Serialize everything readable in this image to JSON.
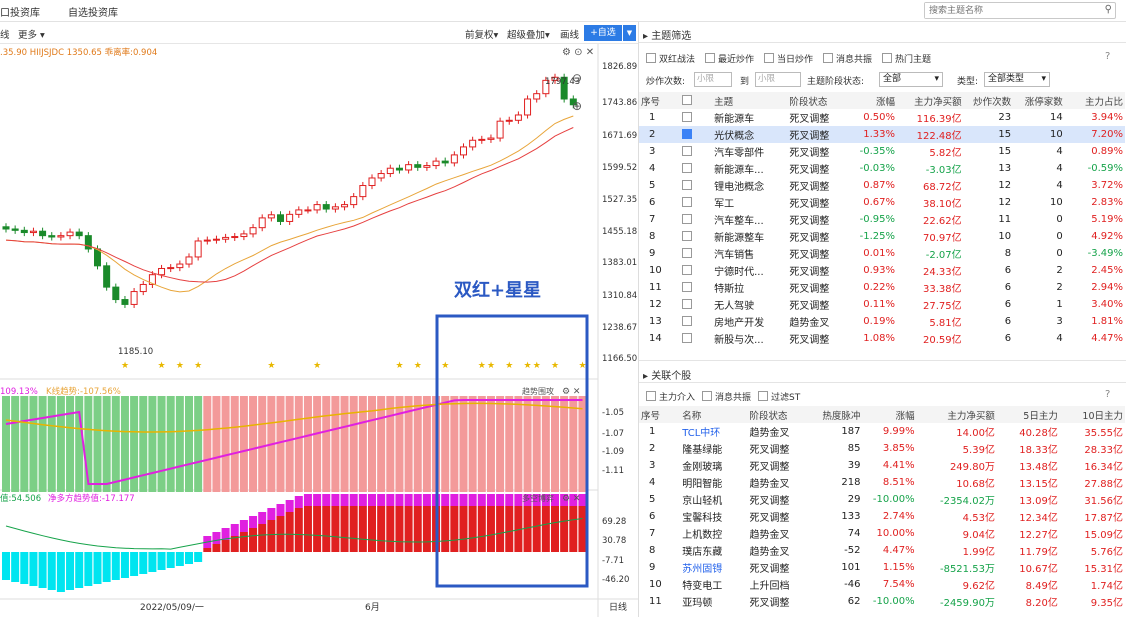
{
  "topbar": {
    "tab1": "口投资库",
    "tab2": "自选投资库",
    "search_placeholder": "搜索主题名称"
  },
  "toolbar": {
    "line": "线",
    "more": "更多",
    "adjust": "前复权",
    "overlay": "超级叠加",
    "draw": "画线",
    "add": "+自选"
  },
  "chart": {
    "info_line": ".35.90  HIIJSJDC 1350.65  乖离率:0.904",
    "high_label": "1797.43",
    "low_label": "1185.10",
    "price_axis": [
      "1826.89",
      "1743.86",
      "1671.69",
      "1599.52",
      "1527.35",
      "1455.18",
      "1383.01",
      "1310.84",
      "1238.67",
      "1166.50"
    ],
    "annotation": "双红+星星",
    "ind1_label_a": "109.13%",
    "ind1_label_b": "K线趋势:-107.56%",
    "ind1_title": "趋势围攻",
    "ind1_axis": [
      "-1.05",
      "-1.07",
      "-1.09",
      "-1.11"
    ],
    "ind2_label_a": "值:54.506",
    "ind2_label_b": "净多方趋势值:-17.177",
    "ind2_title": "多空博弈",
    "ind2_axis": [
      "69.28",
      "30.78",
      "-7.71",
      "-46.20"
    ],
    "date_left": "2022/05/09/一",
    "date_mid": "6月",
    "period": "日线",
    "colors": {
      "up": "#e02020",
      "down": "#1a8a2a",
      "ma_short": "#e8a53a",
      "ma_long": "#e64040",
      "magenta": "#e020e0",
      "cyan": "#00e5f0",
      "box": "#2b59c3"
    }
  },
  "theme_panel": {
    "title": "主题筛选",
    "filters": [
      "双红战法",
      "最近炒作",
      "当日炒作",
      "消息共振",
      "热门主题"
    ],
    "count_label": "炒作次数:",
    "count_min": "小限",
    "count_to": "到",
    "count_max": "小限",
    "stage_label": "主题阶段状态:",
    "stage_value": "全部",
    "type_label": "类型:",
    "type_value": "全部类型",
    "headers": [
      "序号",
      "",
      "主题",
      "阶段状态",
      "涨幅",
      "主力净买额",
      "炒作次数",
      "涨停家数",
      "主力占比"
    ],
    "rows": [
      [
        "1",
        "新能源车",
        "死叉调整",
        "0.50%",
        "116.39亿",
        "23",
        "14",
        "3.94%"
      ],
      [
        "2",
        "光伏概念",
        "死叉调整",
        "1.33%",
        "122.48亿",
        "15",
        "10",
        "7.20%"
      ],
      [
        "3",
        "汽车零部件",
        "死叉调整",
        "-0.35%",
        "5.82亿",
        "15",
        "4",
        "0.89%"
      ],
      [
        "4",
        "新能源车...",
        "死叉调整",
        "-0.03%",
        "-3.03亿",
        "13",
        "4",
        "-0.59%"
      ],
      [
        "5",
        "锂电池概念",
        "死叉调整",
        "0.87%",
        "68.72亿",
        "12",
        "4",
        "3.72%"
      ],
      [
        "6",
        "军工",
        "死叉调整",
        "0.67%",
        "38.10亿",
        "12",
        "10",
        "2.83%"
      ],
      [
        "7",
        "汽车整车...",
        "死叉调整",
        "-0.95%",
        "22.62亿",
        "11",
        "0",
        "5.19%"
      ],
      [
        "8",
        "新能源整车",
        "死叉调整",
        "-1.25%",
        "70.97亿",
        "10",
        "0",
        "4.92%"
      ],
      [
        "9",
        "汽车销售",
        "死叉调整",
        "0.01%",
        "-2.07亿",
        "8",
        "0",
        "-3.49%"
      ],
      [
        "10",
        "宁德时代...",
        "死叉调整",
        "0.93%",
        "24.33亿",
        "6",
        "2",
        "2.45%"
      ],
      [
        "11",
        "特斯拉",
        "死叉调整",
        "0.22%",
        "33.38亿",
        "6",
        "2",
        "2.94%"
      ],
      [
        "12",
        "无人驾驶",
        "死叉调整",
        "0.11%",
        "27.75亿",
        "6",
        "1",
        "3.40%"
      ],
      [
        "13",
        "房地产开发",
        "趋势金叉",
        "0.19%",
        "5.81亿",
        "6",
        "3",
        "1.81%"
      ],
      [
        "14",
        "新股与次...",
        "死叉调整",
        "1.08%",
        "20.59亿",
        "6",
        "4",
        "4.47%"
      ]
    ]
  },
  "stock_panel": {
    "title": "关联个股",
    "filters": [
      "主力介入",
      "消息共振",
      "过滤ST"
    ],
    "headers": [
      "序号",
      "名称",
      "阶段状态",
      "热度脉冲",
      "涨幅",
      "主力净买额",
      "5日主力",
      "10日主力"
    ],
    "rows": [
      [
        "1",
        "TCL中环",
        "趋势金叉",
        "187",
        "9.99%",
        "14.00亿",
        "40.28亿",
        "35.55亿"
      ],
      [
        "2",
        "隆基绿能",
        "死叉调整",
        "85",
        "3.85%",
        "5.39亿",
        "18.33亿",
        "28.33亿"
      ],
      [
        "3",
        "金刚玻璃",
        "死叉调整",
        "39",
        "4.41%",
        "249.80万",
        "13.48亿",
        "16.34亿"
      ],
      [
        "4",
        "明阳智能",
        "趋势金叉",
        "218",
        "8.51%",
        "10.68亿",
        "13.15亿",
        "27.88亿"
      ],
      [
        "5",
        "京山轻机",
        "死叉调整",
        "29",
        "-10.00%",
        "-2354.02万",
        "13.09亿",
        "31.56亿"
      ],
      [
        "6",
        "宝馨科技",
        "死叉调整",
        "133",
        "2.74%",
        "4.53亿",
        "12.34亿",
        "17.87亿"
      ],
      [
        "7",
        "上机数控",
        "趋势金叉",
        "74",
        "10.00%",
        "9.04亿",
        "12.27亿",
        "15.09亿"
      ],
      [
        "8",
        "璞店东藏",
        "趋势金叉",
        "-52",
        "4.47%",
        "1.99亿",
        "11.79亿",
        "5.76亿"
      ],
      [
        "9",
        "苏州固锝",
        "死叉调整",
        "101",
        "1.15%",
        "-8521.53万",
        "10.67亿",
        "15.31亿"
      ],
      [
        "10",
        "特变电工",
        "上升回档",
        "-46",
        "7.54%",
        "9.62亿",
        "8.49亿",
        "1.74亿"
      ],
      [
        "11",
        "亚玛顿",
        "死叉调整",
        "62",
        "-10.00%",
        "-2459.90万",
        "8.20亿",
        "9.35亿"
      ]
    ]
  }
}
